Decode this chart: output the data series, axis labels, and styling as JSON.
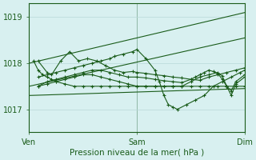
{
  "title": "Pression niveau de la mer( hPa )",
  "bg_color": "#d8f0f0",
  "grid_color": "#b8d8d8",
  "line_color": "#1a5c1a",
  "ylim": [
    1016.5,
    1019.3
  ],
  "yticks": [
    1017,
    1018,
    1019
  ],
  "xlim": [
    0,
    48
  ],
  "xtick_positions": [
    0,
    24,
    48
  ],
  "xtick_labels": [
    "Ven",
    "Sam",
    "Dim"
  ],
  "series": [
    {
      "x": [
        0,
        48
      ],
      "y": [
        1018.0,
        1019.1
      ],
      "marker": false
    },
    {
      "x": [
        0,
        48
      ],
      "y": [
        1017.5,
        1018.55
      ],
      "marker": false
    },
    {
      "x": [
        0,
        48
      ],
      "y": [
        1017.3,
        1017.45
      ],
      "marker": false
    },
    {
      "x": [
        2,
        4,
        5,
        7,
        9,
        11,
        13,
        15,
        17,
        19,
        21,
        23,
        24,
        26,
        28,
        30,
        32,
        34,
        36,
        38,
        40,
        42,
        44,
        46,
        48
      ],
      "y": [
        1018.05,
        1017.8,
        1017.75,
        1018.05,
        1018.25,
        1018.05,
        1018.1,
        1018.05,
        1017.95,
        1017.85,
        1017.8,
        1017.82,
        1017.8,
        1017.78,
        1017.75,
        1017.73,
        1017.7,
        1017.68,
        1017.65,
        1017.63,
        1017.7,
        1017.75,
        1017.8,
        1017.85,
        1017.9
      ],
      "marker": true
    },
    {
      "x": [
        2,
        4,
        6,
        8,
        10,
        12,
        14,
        16,
        18,
        19,
        21,
        23,
        24,
        26,
        28,
        29,
        30,
        31,
        32,
        33,
        35,
        37,
        39,
        41,
        43,
        45,
        47,
        48
      ],
      "y": [
        1017.7,
        1017.75,
        1017.8,
        1017.85,
        1017.9,
        1017.95,
        1018.0,
        1018.05,
        1018.1,
        1018.15,
        1018.2,
        1018.25,
        1018.3,
        1018.1,
        1017.85,
        1017.6,
        1017.3,
        1017.1,
        1017.05,
        1017.0,
        1017.1,
        1017.2,
        1017.3,
        1017.5,
        1017.6,
        1017.7,
        1017.8,
        1017.85
      ],
      "marker": true
    },
    {
      "x": [
        2,
        4,
        6,
        8,
        10,
        12,
        14,
        16,
        18,
        20,
        22,
        24,
        26,
        28,
        30,
        32,
        34,
        36,
        37,
        38,
        39,
        40,
        41,
        42,
        43,
        44,
        45,
        46,
        48
      ],
      "y": [
        1017.5,
        1017.6,
        1017.65,
        1017.7,
        1017.75,
        1017.8,
        1017.85,
        1017.85,
        1017.8,
        1017.75,
        1017.7,
        1017.7,
        1017.68,
        1017.65,
        1017.62,
        1017.6,
        1017.58,
        1017.65,
        1017.7,
        1017.75,
        1017.8,
        1017.85,
        1017.82,
        1017.78,
        1017.65,
        1017.5,
        1017.4,
        1017.6,
        1017.75
      ],
      "marker": true
    },
    {
      "x": [
        2,
        4,
        6,
        8,
        10,
        12,
        14,
        16,
        18,
        20,
        22,
        24,
        26,
        28,
        30,
        32,
        34,
        36,
        38,
        40,
        42,
        43,
        44,
        45,
        46,
        48
      ],
      "y": [
        1017.5,
        1017.55,
        1017.6,
        1017.65,
        1017.7,
        1017.75,
        1017.75,
        1017.7,
        1017.65,
        1017.6,
        1017.55,
        1017.5,
        1017.5,
        1017.5,
        1017.5,
        1017.5,
        1017.5,
        1017.6,
        1017.7,
        1017.75,
        1017.8,
        1017.72,
        1017.5,
        1017.3,
        1017.55,
        1017.7
      ],
      "marker": true
    },
    {
      "x": [
        1,
        2,
        3,
        4,
        5,
        6,
        8,
        10,
        12,
        14,
        16,
        18,
        20,
        22,
        24,
        26,
        28,
        30,
        32,
        34,
        36,
        38,
        40,
        42,
        44,
        46,
        48
      ],
      "y": [
        1018.05,
        1017.85,
        1017.75,
        1017.7,
        1017.65,
        1017.6,
        1017.55,
        1017.5,
        1017.5,
        1017.5,
        1017.5,
        1017.5,
        1017.5,
        1017.5,
        1017.5,
        1017.5,
        1017.5,
        1017.5,
        1017.5,
        1017.5,
        1017.5,
        1017.5,
        1017.5,
        1017.5,
        1017.5,
        1017.5,
        1017.5
      ],
      "marker": true
    }
  ]
}
